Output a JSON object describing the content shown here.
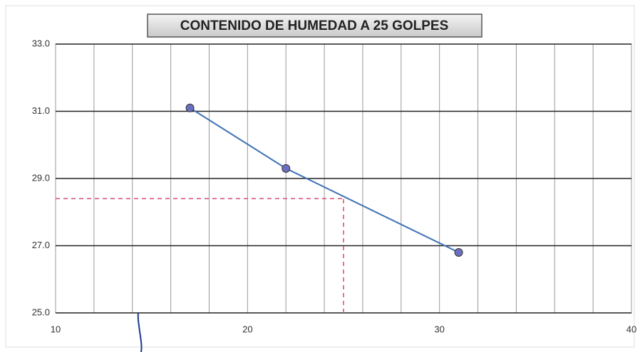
{
  "chart_data": {
    "type": "line",
    "title": "CONTENIDO DE HUMEDAD A 25 GOLPES",
    "x": [
      17,
      22,
      31
    ],
    "series": [
      {
        "color": "#3f72b5",
        "marker_color": "#6b6fbf",
        "values": [
          31.1,
          29.3,
          26.8
        ]
      }
    ],
    "xlim": [
      10,
      40
    ],
    "xticks": [
      10,
      20,
      30,
      40
    ],
    "x_minor_ticks": [
      12,
      14,
      16,
      18,
      22,
      24,
      26,
      28,
      32,
      34,
      36,
      38
    ],
    "ylim": [
      25,
      33
    ],
    "yticks": [
      {
        "value": 25,
        "label": "25.0"
      },
      {
        "value": 27,
        "label": "27.0"
      },
      {
        "value": 29,
        "label": "29.0"
      },
      {
        "value": 31,
        "label": "31.0"
      },
      {
        "value": 33,
        "label": "33.0"
      }
    ],
    "grid": true,
    "reference": {
      "x": 25,
      "y": 28.4,
      "color": "#d9557a"
    }
  }
}
